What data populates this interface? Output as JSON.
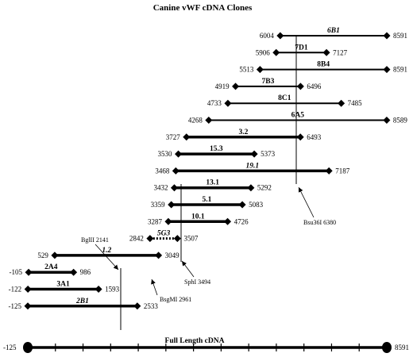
{
  "title": "Canine vWF cDNA Clones",
  "full_length": {
    "label": "Full Length cDNA",
    "start": "-125",
    "end": "8591"
  },
  "clones": [
    {
      "name": "6B1",
      "start": "6004",
      "end": "8591",
      "italic": true
    },
    {
      "name": "7D1",
      "start": "5906",
      "end": "7127",
      "italic": false
    },
    {
      "name": "8B4",
      "start": "5513",
      "end": "8591",
      "italic": false
    },
    {
      "name": "7B3",
      "start": "4919",
      "end": "6496",
      "italic": false
    },
    {
      "name": "8C1",
      "start": "4733",
      "end": "7485",
      "italic": false
    },
    {
      "name": "6A5",
      "start": "4268",
      "end": "8589",
      "italic": false
    },
    {
      "name": "3.2",
      "start": "3727",
      "end": "6493",
      "italic": false
    },
    {
      "name": "15.3",
      "start": "3530",
      "end": "5373",
      "italic": false
    },
    {
      "name": "19.1",
      "start": "3468",
      "end": "7187",
      "italic": true
    },
    {
      "name": "13.1",
      "start": "3432",
      "end": "5292",
      "italic": false
    },
    {
      "name": "5.1",
      "start": "3359",
      "end": "5083",
      "italic": false
    },
    {
      "name": "10.1",
      "start": "3287",
      "end": "4726",
      "italic": false
    },
    {
      "name": "5G3",
      "start": "2842",
      "end": "3507",
      "italic": true
    },
    {
      "name": "1.2",
      "start": "529",
      "end": "3049",
      "italic": true
    },
    {
      "name": "2A4",
      "start": "-105",
      "end": "986",
      "italic": false
    },
    {
      "name": "3A1",
      "start": "-122",
      "end": "1593",
      "italic": false
    },
    {
      "name": "2B1",
      "start": "-125",
      "end": "2533",
      "italic": true
    }
  ],
  "annotations": [
    {
      "text": "BglII 2141"
    },
    {
      "text": "BsgMI 2961"
    },
    {
      "text": "SphI 3494"
    },
    {
      "text": "Bsu36I 6380"
    }
  ]
}
